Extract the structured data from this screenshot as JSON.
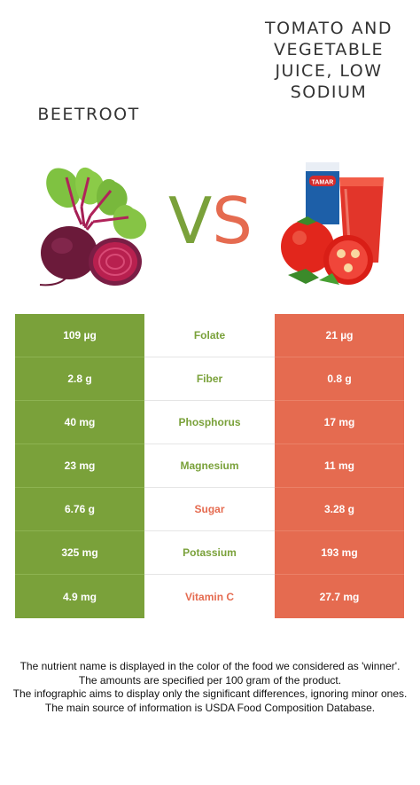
{
  "left_food": {
    "name": "BEETROOT",
    "color": "#7aa13a"
  },
  "right_food": {
    "name": "TOMATO AND VEGETABLE JUICE, LOW SODIUM",
    "color": "#e56b50"
  },
  "vs": {
    "v": "V",
    "s": "S"
  },
  "juice_carton_label": "TAMAR",
  "rows": [
    {
      "nutrient": "Folate",
      "left": "109 µg",
      "right": "21 µg",
      "winner": "left"
    },
    {
      "nutrient": "Fiber",
      "left": "2.8 g",
      "right": "0.8 g",
      "winner": "left"
    },
    {
      "nutrient": "Phosphorus",
      "left": "40 mg",
      "right": "17 mg",
      "winner": "left"
    },
    {
      "nutrient": "Magnesium",
      "left": "23 mg",
      "right": "11 mg",
      "winner": "left"
    },
    {
      "nutrient": "Sugar",
      "left": "6.76 g",
      "right": "3.28 g",
      "winner": "right"
    },
    {
      "nutrient": "Potassium",
      "left": "325 mg",
      "right": "193 mg",
      "winner": "left"
    },
    {
      "nutrient": "Vitamin C",
      "left": "4.9 mg",
      "right": "27.7 mg",
      "winner": "right"
    }
  ],
  "footer": [
    "The nutrient name is displayed in the color of the food we considered as 'winner'.",
    "The amounts are specified per 100 gram of the product.",
    "The infographic aims to display only the significant differences, ignoring minor ones.",
    "The main source of information is USDA Food Composition Database."
  ]
}
